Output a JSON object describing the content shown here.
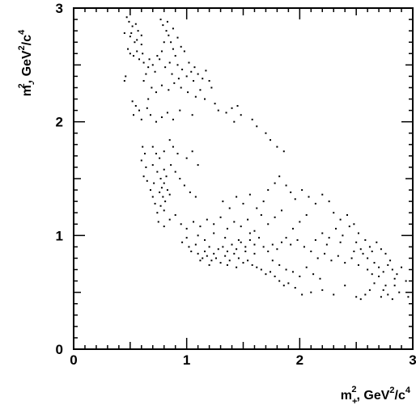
{
  "chart_data": {
    "type": "scatter",
    "title": "",
    "xlabel": {
      "base": "m",
      "sub": "+",
      "sup": "2",
      "rest": ", GeV",
      "rest_sup": "2",
      "unit_tail": "/c",
      "unit_tail_sup": "4"
    },
    "ylabel": {
      "base": "m",
      "sub": "-",
      "sup": "2",
      "rest": ", GeV",
      "rest_sup": "2",
      "unit_tail": "/c",
      "unit_tail_sup": "4"
    },
    "xlim": [
      0,
      3
    ],
    "ylim": [
      0,
      3
    ],
    "x_ticks": [
      0,
      1,
      2,
      3
    ],
    "y_ticks": [
      0,
      1,
      2,
      3
    ],
    "x_tick_labels": [
      "0",
      "1",
      "2",
      "3"
    ],
    "y_tick_labels": [
      "0",
      "1",
      "2",
      "3"
    ],
    "grid": false,
    "marker_color": "#000000",
    "points": [
      [
        0.47,
        2.92
      ],
      [
        0.49,
        2.88
      ],
      [
        0.52,
        2.84
      ],
      [
        0.55,
        2.86
      ],
      [
        0.45,
        2.78
      ],
      [
        0.5,
        2.75
      ],
      [
        0.56,
        2.72
      ],
      [
        0.6,
        2.68
      ],
      [
        0.48,
        2.64
      ],
      [
        0.53,
        2.58
      ],
      [
        0.58,
        2.55
      ],
      [
        0.62,
        2.52
      ],
      [
        0.66,
        2.48
      ],
      [
        0.7,
        2.5
      ],
      [
        0.64,
        2.42
      ],
      [
        0.72,
        2.44
      ],
      [
        0.46,
        2.4
      ],
      [
        0.45,
        2.36
      ],
      [
        0.51,
        2.78
      ],
      [
        0.57,
        2.8
      ],
      [
        0.6,
        2.76
      ],
      [
        0.54,
        2.7
      ],
      [
        0.5,
        2.6
      ],
      [
        0.56,
        2.62
      ],
      [
        0.61,
        2.6
      ],
      [
        0.67,
        2.55
      ],
      [
        0.74,
        2.58
      ],
      [
        0.78,
        2.62
      ],
      [
        0.8,
        2.7
      ],
      [
        0.82,
        2.8
      ],
      [
        0.79,
        2.85
      ],
      [
        0.84,
        2.76
      ],
      [
        0.86,
        2.7
      ],
      [
        0.88,
        2.64
      ],
      [
        0.9,
        2.58
      ],
      [
        0.85,
        2.52
      ],
      [
        0.92,
        2.5
      ],
      [
        0.96,
        2.46
      ],
      [
        1.0,
        2.4
      ],
      [
        1.04,
        2.44
      ],
      [
        1.07,
        2.48
      ],
      [
        1.1,
        2.42
      ],
      [
        1.14,
        2.38
      ],
      [
        1.17,
        2.45
      ],
      [
        1.2,
        2.36
      ],
      [
        0.76,
        2.55
      ],
      [
        0.81,
        2.48
      ],
      [
        0.87,
        2.42
      ],
      [
        0.93,
        2.38
      ],
      [
        0.77,
        2.9
      ],
      [
        0.83,
        2.88
      ],
      [
        0.88,
        2.82
      ],
      [
        0.92,
        2.74
      ],
      [
        0.95,
        2.66
      ],
      [
        0.98,
        2.62
      ],
      [
        1.02,
        2.52
      ],
      [
        1.06,
        2.36
      ],
      [
        0.69,
        2.3
      ],
      [
        0.73,
        2.26
      ],
      [
        0.78,
        2.32
      ],
      [
        0.84,
        2.28
      ],
      [
        0.89,
        2.34
      ],
      [
        0.95,
        2.3
      ],
      [
        1.01,
        2.26
      ],
      [
        1.08,
        2.22
      ],
      [
        1.12,
        2.28
      ],
      [
        1.16,
        2.2
      ],
      [
        1.22,
        2.3
      ],
      [
        1.25,
        2.16
      ],
      [
        0.62,
        2.36
      ],
      [
        0.66,
        2.2
      ],
      [
        0.52,
        2.18
      ],
      [
        0.55,
        2.14
      ],
      [
        0.58,
        2.1
      ],
      [
        0.53,
        2.06
      ],
      [
        0.6,
        2.02
      ],
      [
        0.65,
        2.12
      ],
      [
        0.68,
        2.06
      ],
      [
        0.73,
        2.0
      ],
      [
        0.78,
        2.04
      ],
      [
        0.83,
        2.08
      ],
      [
        0.88,
        2.02
      ],
      [
        0.94,
        2.1
      ],
      [
        1.05,
        2.06
      ],
      [
        1.28,
        2.1
      ],
      [
        1.35,
        2.08
      ],
      [
        1.4,
        2.12
      ],
      [
        1.45,
        2.14
      ],
      [
        1.48,
        2.06
      ],
      [
        1.42,
        2.0
      ],
      [
        1.58,
        2.02
      ],
      [
        1.62,
        1.96
      ],
      [
        1.7,
        1.9
      ],
      [
        1.74,
        1.84
      ],
      [
        1.8,
        1.78
      ],
      [
        1.86,
        1.74
      ],
      [
        0.61,
        1.78
      ],
      [
        0.63,
        1.72
      ],
      [
        0.6,
        1.66
      ],
      [
        0.64,
        1.6
      ],
      [
        0.62,
        1.52
      ],
      [
        0.65,
        1.48
      ],
      [
        0.7,
        1.62
      ],
      [
        0.74,
        1.56
      ],
      [
        0.77,
        1.5
      ],
      [
        0.8,
        1.46
      ],
      [
        0.78,
        1.42
      ],
      [
        0.76,
        1.38
      ],
      [
        0.79,
        1.34
      ],
      [
        0.81,
        1.3
      ],
      [
        0.77,
        1.26
      ],
      [
        0.8,
        1.22
      ],
      [
        0.74,
        1.2
      ],
      [
        0.72,
        1.28
      ],
      [
        0.7,
        1.34
      ],
      [
        0.68,
        1.4
      ],
      [
        0.71,
        1.46
      ],
      [
        0.83,
        1.4
      ],
      [
        0.85,
        1.36
      ],
      [
        0.82,
        1.52
      ],
      [
        0.76,
        1.68
      ],
      [
        0.73,
        1.72
      ],
      [
        0.8,
        1.58
      ],
      [
        0.86,
        1.62
      ],
      [
        0.9,
        1.56
      ],
      [
        0.94,
        1.5
      ],
      [
        0.98,
        1.44
      ],
      [
        1.03,
        1.38
      ],
      [
        1.08,
        1.34
      ],
      [
        0.88,
        1.78
      ],
      [
        0.92,
        1.72
      ],
      [
        1.0,
        1.68
      ],
      [
        1.05,
        1.74
      ],
      [
        1.1,
        1.62
      ],
      [
        0.8,
        1.74
      ],
      [
        0.7,
        1.78
      ],
      [
        0.85,
        1.84
      ],
      [
        0.75,
        1.12
      ],
      [
        0.8,
        1.08
      ],
      [
        0.85,
        1.14
      ],
      [
        0.9,
        1.18
      ],
      [
        0.95,
        1.1
      ],
      [
        1.0,
        1.06
      ],
      [
        1.06,
        1.12
      ],
      [
        1.12,
        1.08
      ],
      [
        1.18,
        1.14
      ],
      [
        1.24,
        1.1
      ],
      [
        1.3,
        1.16
      ],
      [
        1.36,
        1.06
      ],
      [
        1.42,
        1.12
      ],
      [
        1.48,
        1.08
      ],
      [
        1.54,
        1.14
      ],
      [
        1.6,
        1.04
      ],
      [
        1.38,
        1.24
      ],
      [
        1.32,
        1.3
      ],
      [
        1.44,
        1.34
      ],
      [
        1.5,
        1.28
      ],
      [
        1.56,
        1.36
      ],
      [
        1.62,
        1.24
      ],
      [
        1.68,
        1.3
      ],
      [
        1.72,
        1.4
      ],
      [
        1.78,
        1.46
      ],
      [
        1.82,
        1.52
      ],
      [
        1.88,
        1.44
      ],
      [
        1.92,
        1.38
      ],
      [
        1.96,
        1.32
      ],
      [
        2.02,
        1.4
      ],
      [
        2.08,
        1.34
      ],
      [
        2.14,
        1.28
      ],
      [
        2.2,
        1.36
      ],
      [
        2.26,
        1.3
      ],
      [
        2.3,
        1.2
      ],
      [
        2.36,
        1.14
      ],
      [
        2.42,
        1.18
      ],
      [
        2.48,
        1.1
      ],
      [
        2.52,
        1.02
      ],
      [
        2.58,
        0.96
      ],
      [
        2.62,
        0.9
      ],
      [
        2.68,
        0.94
      ],
      [
        2.72,
        0.88
      ],
      [
        2.76,
        0.84
      ],
      [
        2.54,
        0.88
      ],
      [
        2.6,
        0.8
      ],
      [
        2.66,
        0.76
      ],
      [
        2.7,
        0.72
      ],
      [
        2.74,
        0.68
      ],
      [
        2.78,
        0.74
      ],
      [
        2.82,
        0.7
      ],
      [
        2.86,
        0.66
      ],
      [
        2.5,
        0.94
      ],
      [
        2.56,
        0.84
      ],
      [
        2.64,
        0.86
      ],
      [
        2.8,
        0.78
      ],
      [
        2.9,
        0.72
      ],
      [
        2.94,
        0.6
      ],
      [
        2.7,
        0.64
      ],
      [
        2.66,
        0.58
      ],
      [
        2.62,
        0.52
      ],
      [
        2.58,
        0.48
      ],
      [
        2.54,
        0.44
      ],
      [
        2.5,
        0.46
      ],
      [
        2.74,
        0.52
      ],
      [
        2.78,
        0.48
      ],
      [
        2.82,
        0.44
      ],
      [
        2.76,
        0.56
      ],
      [
        2.72,
        0.46
      ],
      [
        2.96,
        0.46
      ],
      [
        2.88,
        0.5
      ],
      [
        2.84,
        0.56
      ],
      [
        1.0,
        0.98
      ],
      [
        0.96,
        0.94
      ],
      [
        1.02,
        0.9
      ],
      [
        1.08,
        0.92
      ],
      [
        1.04,
        0.86
      ],
      [
        1.1,
        0.84
      ],
      [
        1.14,
        0.8
      ],
      [
        1.18,
        0.82
      ],
      [
        1.22,
        0.78
      ],
      [
        1.26,
        0.8
      ],
      [
        1.3,
        0.76
      ],
      [
        1.34,
        0.82
      ],
      [
        1.38,
        0.78
      ],
      [
        1.42,
        0.84
      ],
      [
        1.46,
        0.8
      ],
      [
        1.5,
        0.76
      ],
      [
        1.54,
        0.78
      ],
      [
        1.58,
        0.74
      ],
      [
        1.62,
        0.72
      ],
      [
        1.66,
        0.7
      ],
      [
        1.7,
        0.66
      ],
      [
        1.74,
        0.68
      ],
      [
        1.78,
        0.64
      ],
      [
        1.82,
        0.6
      ],
      [
        1.86,
        0.56
      ],
      [
        1.9,
        0.58
      ],
      [
        1.96,
        0.54
      ],
      [
        2.02,
        0.48
      ],
      [
        2.1,
        0.5
      ],
      [
        2.2,
        0.52
      ],
      [
        2.3,
        0.48
      ],
      [
        2.4,
        0.56
      ],
      [
        1.16,
        0.86
      ],
      [
        1.2,
        0.9
      ],
      [
        1.24,
        0.84
      ],
      [
        1.28,
        0.88
      ],
      [
        1.32,
        0.9
      ],
      [
        1.36,
        0.86
      ],
      [
        1.4,
        0.92
      ],
      [
        1.44,
        0.88
      ],
      [
        1.48,
        0.94
      ],
      [
        1.52,
        0.9
      ],
      [
        1.56,
        0.96
      ],
      [
        1.6,
        0.92
      ],
      [
        1.64,
        0.98
      ],
      [
        1.68,
        0.9
      ],
      [
        1.72,
        0.86
      ],
      [
        1.76,
        0.92
      ],
      [
        1.8,
        0.88
      ],
      [
        1.84,
        0.94
      ],
      [
        1.88,
        0.98
      ],
      [
        1.92,
        0.92
      ],
      [
        1.98,
        0.96
      ],
      [
        2.04,
        0.9
      ],
      [
        2.1,
        0.86
      ],
      [
        2.16,
        0.8
      ],
      [
        2.22,
        0.84
      ],
      [
        2.28,
        0.78
      ],
      [
        2.34,
        0.82
      ],
      [
        2.4,
        0.76
      ],
      [
        2.46,
        0.8
      ],
      [
        2.52,
        0.74
      ],
      [
        2.14,
        0.96
      ],
      [
        2.2,
        1.02
      ],
      [
        2.26,
        0.98
      ],
      [
        2.32,
        1.06
      ],
      [
        2.38,
        1.0
      ],
      [
        2.44,
        1.08
      ],
      [
        1.94,
        1.06
      ],
      [
        2.0,
        1.12
      ],
      [
        2.06,
        1.18
      ],
      [
        1.72,
        1.1
      ],
      [
        1.78,
        1.16
      ],
      [
        1.84,
        1.22
      ],
      [
        1.66,
        1.18
      ],
      [
        1.76,
        0.78
      ],
      [
        1.82,
        0.74
      ],
      [
        1.88,
        0.7
      ],
      [
        1.94,
        0.68
      ],
      [
        2.0,
        0.64
      ],
      [
        2.06,
        0.72
      ],
      [
        2.12,
        0.66
      ],
      [
        2.18,
        0.62
      ],
      [
        1.1,
        1.0
      ],
      [
        1.16,
        0.96
      ],
      [
        1.24,
        1.02
      ],
      [
        1.34,
        0.98
      ],
      [
        1.46,
        0.96
      ],
      [
        1.56,
        1.02
      ],
      [
        2.24,
        0.92
      ],
      [
        2.36,
        0.94
      ],
      [
        2.48,
        0.86
      ],
      [
        2.6,
        0.7
      ],
      [
        2.64,
        0.66
      ],
      [
        2.84,
        0.62
      ],
      [
        1.52,
        0.86
      ],
      [
        1.6,
        0.84
      ],
      [
        1.36,
        0.74
      ],
      [
        1.44,
        0.72
      ],
      [
        1.2,
        0.74
      ],
      [
        1.12,
        0.78
      ]
    ]
  }
}
